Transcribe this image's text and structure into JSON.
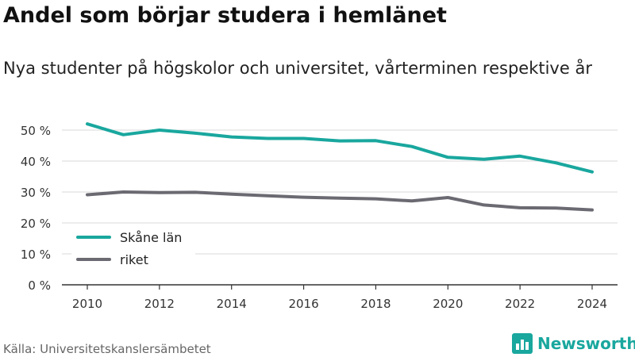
{
  "title": "Andel som börjar studera i hemlänet",
  "subtitle": "Nya studenter på högskolor och universitet, vårterminen respektive år",
  "source": "Källa: Universitetskanslersämbetet",
  "brand": {
    "name": "Newsworthy",
    "icon": "newsworthy-logo-icon",
    "color": "#19a79e"
  },
  "chart_data": {
    "type": "line",
    "x": [
      2010,
      2011,
      2012,
      2013,
      2014,
      2015,
      2016,
      2017,
      2018,
      2019,
      2020,
      2021,
      2022,
      2023,
      2024
    ],
    "x_ticks": [
      2010,
      2012,
      2014,
      2016,
      2018,
      2020,
      2022,
      2024
    ],
    "y_ticks": [
      0,
      10,
      20,
      30,
      40,
      50
    ],
    "y_tick_labels": [
      "0 %",
      "10 %",
      "20 %",
      "30 %",
      "40 %",
      "50 %"
    ],
    "ylim": [
      0,
      50
    ],
    "grid": true,
    "legend_position": "bottom-left",
    "series": [
      {
        "name": "Skåne län",
        "color": "#19a79e",
        "values": [
          52.0,
          48.5,
          50.0,
          49.0,
          47.8,
          47.3,
          47.3,
          46.5,
          46.6,
          44.7,
          41.2,
          40.6,
          41.6,
          39.4,
          36.5
        ]
      },
      {
        "name": "riket",
        "color": "#6b6a72",
        "values": [
          29.1,
          30.0,
          29.8,
          29.9,
          29.3,
          28.8,
          28.3,
          28.0,
          27.8,
          27.1,
          28.2,
          25.8,
          24.9,
          24.8,
          24.2
        ]
      }
    ]
  }
}
